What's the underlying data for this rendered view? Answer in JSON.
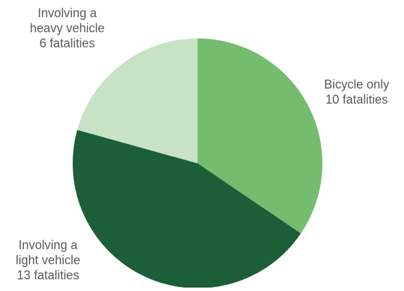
{
  "chart_data": {
    "type": "pie",
    "title": "",
    "slices": [
      {
        "name": "Bicycle only",
        "value": 10,
        "value_label": "10 fatalities",
        "label_lines": [
          "Bicycle only",
          "10 fatalities"
        ],
        "color": "#74bd6f"
      },
      {
        "name": "Involving a light vehicle",
        "value": 13,
        "value_label": "13 fatalities",
        "label_lines": [
          "Involving a",
          "light vehicle",
          "13 fatalities"
        ],
        "color": "#1b5e37"
      },
      {
        "name": "Involving a heavy vehicle",
        "value": 6,
        "value_label": "6 fatalities",
        "label_lines": [
          "Involving a",
          "heavy vehicle",
          "6 fatalities"
        ],
        "color": "#c7e2c4"
      }
    ],
    "legend": "none",
    "label_color": "#595959"
  }
}
